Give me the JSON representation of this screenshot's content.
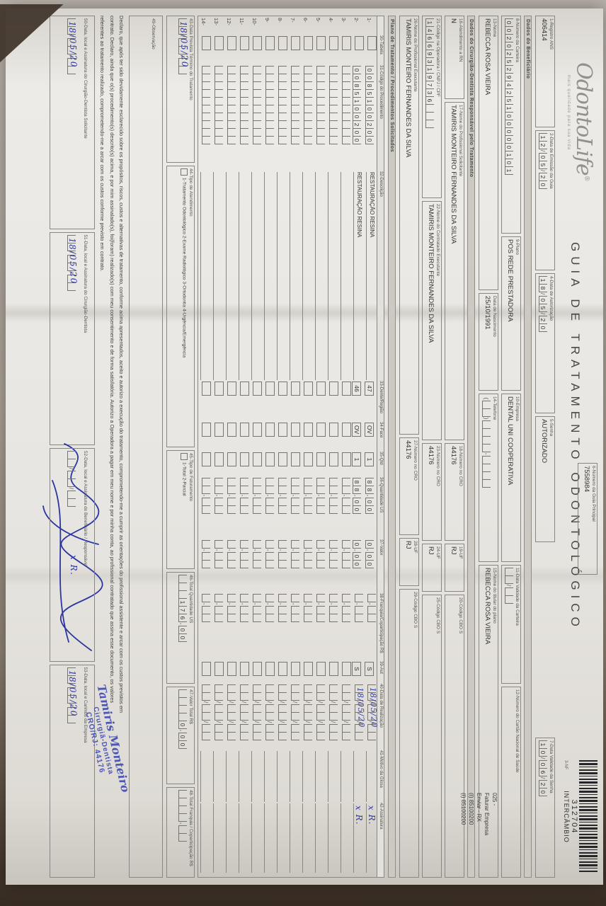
{
  "header": {
    "logo_text": "OdontoLife",
    "logo_reg": "®",
    "logo_tagline": "mais qualidade para sua vida",
    "title": "GUIA DE TRATAMENTO ODONTOLÓGICO",
    "nf_label": "3-NF",
    "guia_principal_label": "6-Número da Guia Principal",
    "guia_principal_value": "7558984",
    "barcode_number": "312704",
    "barcode_caption": "INTERCÂMBIO"
  },
  "row1": {
    "f1": {
      "label": "1-Registro ANS",
      "value": "406414"
    },
    "f2": {
      "label": "2-Data de Emissão da Guia",
      "comb": "12/05/20"
    },
    "f4": {
      "label": "4-Data de Autorização",
      "comb": "18/05/20"
    },
    "f5": {
      "label": "5-Senha",
      "value": "AUTORIZADO"
    },
    "f7": {
      "label": "7-Data Validade da Senha",
      "comb": "10/06/20"
    }
  },
  "sections": {
    "beneficiario": "Dados do Beneficiário",
    "contratado": "Dados do Cirurgião-Dentista Responsável pelo Tratamento",
    "plano": "Plano de Tratamento / Procedimentos Solicitados"
  },
  "beneficiario": {
    "f8": {
      "label": "8-Número da Carteira",
      "comb": "00202529425100000101"
    },
    "f9": {
      "label": "9-Plano",
      "value": "POS REDE PRESTADORA"
    },
    "f10": {
      "label": "10-Empresa",
      "value": "DENTAL UNI COOPERATIVA"
    },
    "f11": {
      "label": "11-Data Validade da Carteira",
      "comb": "__/__"
    },
    "f12": {
      "label": "12-Número do Cartão Nacional de Saúde",
      "value": ""
    },
    "f13": {
      "label": "13-Nome",
      "value": "REBECCA ROSA VIEIRA"
    },
    "fnasc": {
      "label": "Data de Nascimento",
      "value": "25/10/1991"
    },
    "f14": {
      "label": "14-Telefone",
      "comb": "(__)____-____"
    },
    "f15": {
      "label": "15-Nome do titular do plano",
      "value": "REBECCA ROSA VIEIRA"
    }
  },
  "contratado": {
    "f16": {
      "label": "16-Atendimento a RN",
      "value": "N"
    },
    "f17": {
      "label": "17-Nome do Profissional Solicitante",
      "value": "TAMIRIS MONTEIRO FERNANDES DA SILVA"
    },
    "f18": {
      "label": "18-Número no CRO",
      "value": "44176"
    },
    "f19": {
      "label": "19-UF",
      "value": "RJ"
    },
    "f20": {
      "label": "20-Código CBO S",
      "value": ""
    },
    "f21": {
      "label": "21-Código na Operadora / CNPJ / CPF",
      "comb": "14669319736___"
    },
    "f22": {
      "label": "22-Nome do Contratado Executante",
      "value": "TAMIRIS MONTEIRO FERNANDES DA SILVA"
    },
    "f23": {
      "label": "23-Número no CRO",
      "value": "44176"
    },
    "f24": {
      "label": "24-UF",
      "value": "RJ"
    },
    "f25": {
      "label": "25-Código CBO S",
      "value": ""
    },
    "f26": {
      "label": "26-Nome do Profissional Executante",
      "value": "TAMIRIS MONTEIRO FERNANDES DA SILVA"
    },
    "f27": {
      "label": "27-Número no CRO",
      "value": "44176"
    },
    "f28": {
      "label": "28-UF",
      "value": "RJ"
    },
    "f29": {
      "label": "29-Código CBO S",
      "value": ""
    }
  },
  "billing_note": [
    "025 -",
    "Faturar Empresa",
    "Enviar - RX",
    "(I) 85100200",
    "(I) 85100200"
  ],
  "table": {
    "headers": {
      "num": "",
      "tabela": "30-Tabela",
      "codigo": "31-Código do Procedimento",
      "desc": "32-Descrição",
      "dente": "33-Dente/Região",
      "face": "34-Face",
      "qtd": "35-Qtd",
      "qus": "36-Quantidade US",
      "valor": "37-Valor",
      "franquia": "38-Franquia/Coparticipação R$",
      "aut": "39-Aut",
      "realizacao": "40-Data de Realização",
      "glosa": "41-Motivo da Glosa",
      "sig": "42-Assinatura"
    },
    "rows": [
      {
        "num": "1-",
        "tabela": "",
        "codigo": "0085100200",
        "desc": "RESTAURAÇÃO RESINA",
        "dente": "47",
        "face": "OV",
        "qtd": "1",
        "qus": "88,00",
        "valor": "0,00",
        "franquia": "_,__",
        "aut": "S",
        "realizacao": "__/__/__",
        "realizacao_hand": "18/05/20",
        "glosa": "",
        "sig_hand": "x R."
      },
      {
        "num": "2-",
        "tabela": "",
        "codigo": "0085100200",
        "desc": "RESTAURAÇÃO RESINA",
        "dente": "46",
        "face": "OV",
        "qtd": "1",
        "qus": "88,00",
        "valor": "0,00",
        "franquia": "_,__",
        "aut": "S",
        "realizacao": "__/__/__",
        "realizacao_hand": "18/05/20",
        "glosa": "",
        "sig_hand": "x R."
      },
      {
        "num": "3-",
        "tabela": "",
        "codigo": "__________",
        "desc": "",
        "dente": "",
        "face": "",
        "qtd": "",
        "qus": "__,__",
        "valor": "_,__",
        "franquia": "_,__",
        "aut": "",
        "realizacao": "__/__/__",
        "glosa": "",
        "sig_hand": ""
      },
      {
        "num": "4-",
        "tabela": "",
        "codigo": "__________",
        "desc": "",
        "dente": "",
        "face": "",
        "qtd": "",
        "qus": "__,__",
        "valor": "_,__",
        "franquia": "_,__",
        "aut": "",
        "realizacao": "__/__/__",
        "glosa": "",
        "sig_hand": ""
      },
      {
        "num": "5-",
        "tabela": "",
        "codigo": "__________",
        "desc": "",
        "dente": "",
        "face": "",
        "qtd": "",
        "qus": "__,__",
        "valor": "_,__",
        "franquia": "_,__",
        "aut": "",
        "realizacao": "__/__/__",
        "glosa": "",
        "sig_hand": ""
      },
      {
        "num": "6-",
        "tabela": "",
        "codigo": "__________",
        "desc": "",
        "dente": "",
        "face": "",
        "qtd": "",
        "qus": "__,__",
        "valor": "_,__",
        "franquia": "_,__",
        "aut": "",
        "realizacao": "__/__/__",
        "glosa": "",
        "sig_hand": ""
      },
      {
        "num": "7-",
        "tabela": "",
        "codigo": "__________",
        "desc": "",
        "dente": "",
        "face": "",
        "qtd": "",
        "qus": "__,__",
        "valor": "_,__",
        "franquia": "_,__",
        "aut": "",
        "realizacao": "__/__/__",
        "glosa": "",
        "sig_hand": ""
      },
      {
        "num": "8-",
        "tabela": "",
        "codigo": "__________",
        "desc": "",
        "dente": "",
        "face": "",
        "qtd": "",
        "qus": "__,__",
        "valor": "_,__",
        "franquia": "_,__",
        "aut": "",
        "realizacao": "__/__/__",
        "glosa": "",
        "sig_hand": ""
      },
      {
        "num": "9-",
        "tabela": "",
        "codigo": "__________",
        "desc": "",
        "dente": "",
        "face": "",
        "qtd": "",
        "qus": "__,__",
        "valor": "_,__",
        "franquia": "_,__",
        "aut": "",
        "realizacao": "__/__/__",
        "glosa": "",
        "sig_hand": ""
      },
      {
        "num": "10-",
        "tabela": "",
        "codigo": "__________",
        "desc": "",
        "dente": "",
        "face": "",
        "qtd": "",
        "qus": "__,__",
        "valor": "_,__",
        "franquia": "_,__",
        "aut": "",
        "realizacao": "__/__/__",
        "glosa": "",
        "sig_hand": ""
      },
      {
        "num": "11-",
        "tabela": "",
        "codigo": "__________",
        "desc": "",
        "dente": "",
        "face": "",
        "qtd": "",
        "qus": "__,__",
        "valor": "_,__",
        "franquia": "_,__",
        "aut": "",
        "realizacao": "__/__/__",
        "glosa": "",
        "sig_hand": ""
      },
      {
        "num": "12-",
        "tabela": "",
        "codigo": "__________",
        "desc": "",
        "dente": "",
        "face": "",
        "qtd": "",
        "qus": "__,__",
        "valor": "_,__",
        "franquia": "_,__",
        "aut": "",
        "realizacao": "__/__/__",
        "glosa": "",
        "sig_hand": ""
      },
      {
        "num": "13-",
        "tabela": "",
        "codigo": "__________",
        "desc": "",
        "dente": "",
        "face": "",
        "qtd": "",
        "qus": "__,__",
        "valor": "_,__",
        "franquia": "_,__",
        "aut": "",
        "realizacao": "__/__/__",
        "glosa": "",
        "sig_hand": ""
      },
      {
        "num": "14-",
        "tabela": "",
        "codigo": "__________",
        "desc": "",
        "dente": "",
        "face": "",
        "qtd": "",
        "qus": "__,__",
        "valor": "_,__",
        "franquia": "_,__",
        "aut": "",
        "realizacao": "__/__/__",
        "glosa": "",
        "sig_hand": ""
      }
    ]
  },
  "bottom": {
    "f43": {
      "label": "43-Data Prevista Término do Tratamento",
      "comb": "__/__/__",
      "hand": "18/05/20"
    },
    "f44": {
      "label": "44-Tipo de Atendimento",
      "options": "1-Tratamento Odontológico   2-Exame Radiológico   3-Ortodontia   4-Urgência/Emergência"
    },
    "f45": {
      "label": "45-Tipo de Faturamento",
      "options": "1-Total  2-Parcial"
    },
    "f46": {
      "label": "46-Total Quantidade US",
      "comb": "___176,00"
    },
    "f47": {
      "label": "47-Valor Total R$",
      "comb": "____0,00"
    },
    "f48": {
      "label": "48-Total Franquia / Coparticipação R$",
      "comb": "____,__"
    },
    "f49": {
      "label": "49-Observação"
    }
  },
  "declaration_lines": [
    "Declaro, que após ter sido devidamente esclarecido sobre os propósitos, riscos, custos e alternativas de tratamento, conforme acima apresentados, aceito e autorizo a execução do tratamento, comprometendo-me a cumprir as orientações do profissional assistente e arcar com os custos previstos em",
    "contrato. Declaro, ainda que o(s) procedimento(s) descrito(s) acima, e por mim assinalado(s), foi(foram) realizado(s) com meu consentimento e de forma satisfatória. Autorizo a Operadora a pagar em meu nome e por minha conta, ao profissional contratado que assina esse documento, os valores",
    "referentes ao tratamento realizado, comprometendo-me a arcar com os custos conforme previsto em contrato."
  ],
  "signatures": {
    "s50": {
      "label": "50-Data, local e Assinatura do Cirurgião-Dentista Solicitante",
      "comb": "__/__/__",
      "hand": "18/05/20"
    },
    "s51": {
      "label": "51-Data, local e Assinatura do Cirurgião-Dentista",
      "comb": "__/__/__",
      "hand": "18/05/20"
    },
    "s52": {
      "label": "52-Data, local e Assinatura do Beneficiário / Responsável",
      "comb": "__/__/__",
      "hand": "",
      "mark": "x R."
    },
    "s53": {
      "label": "53-Data, local e Carimbo da Empresa",
      "comb": "__/__/__",
      "hand": "18/05/20"
    }
  },
  "stamp": {
    "line1": "Tamiris Monteiro",
    "line2": "Cirurgiã-Dentista",
    "line3": "CRO/RJ: 44176"
  }
}
